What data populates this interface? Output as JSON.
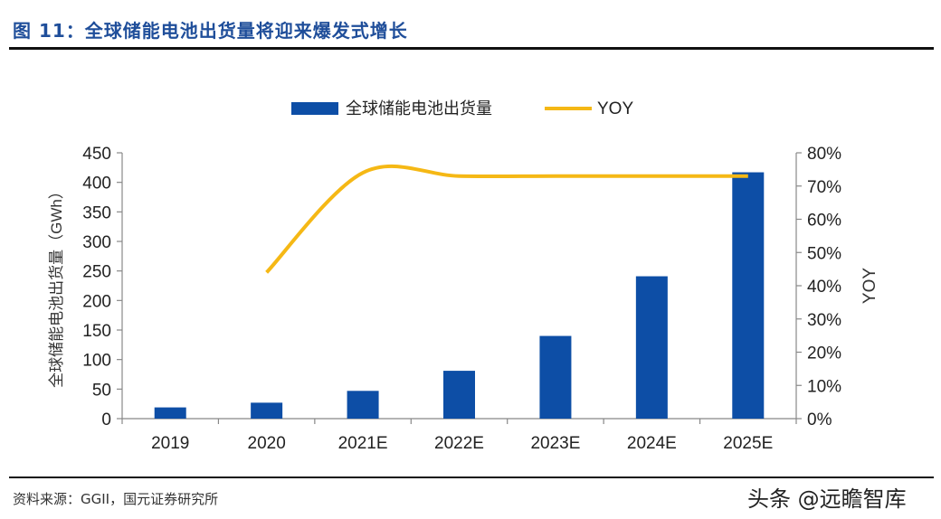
{
  "figure": {
    "title": "图 11：全球储能电池出货量将迎来爆发式增长",
    "source": "资料来源：GGII，国元证券研究所",
    "watermark": "头条 @远瞻智库"
  },
  "chart_data": {
    "type": "bar",
    "categories": [
      "2019",
      "2020",
      "2021E",
      "2022E",
      "2023E",
      "2024E",
      "2025E"
    ],
    "series": [
      {
        "name": "全球储能电池出货量",
        "type": "bar",
        "axis": "left",
        "color": "#0D4EA6",
        "values": [
          19,
          27,
          47,
          81,
          140,
          241,
          417
        ]
      },
      {
        "name": "YOY",
        "type": "line",
        "axis": "right",
        "color": "#F5B815",
        "values": [
          null,
          44,
          74,
          73,
          73,
          73,
          73
        ]
      }
    ],
    "ylabel": "全球储能电池出货量（GWh）",
    "ylabel_right": "YOY",
    "ylim": [
      0,
      450
    ],
    "y_ticks": [
      "0",
      "50",
      "100",
      "150",
      "200",
      "250",
      "300",
      "350",
      "400",
      "450"
    ],
    "ylim_right": [
      0,
      80
    ],
    "y_ticks_right": [
      "0%",
      "10%",
      "20%",
      "30%",
      "40%",
      "50%",
      "60%",
      "70%",
      "80%"
    ],
    "legend_position": "top-center",
    "grid": false
  }
}
